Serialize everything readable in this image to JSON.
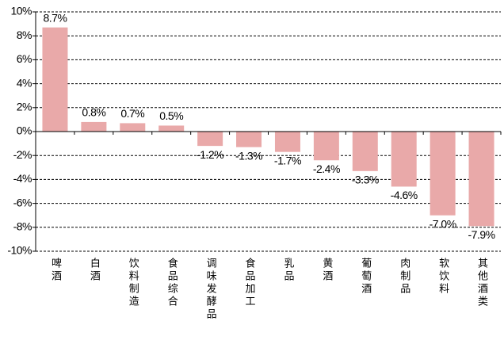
{
  "chart_data": {
    "type": "bar",
    "categories": [
      "啤酒",
      "白酒",
      "饮料制造",
      "食品综合",
      "调味发酵品",
      "食品加工",
      "乳品",
      "黄酒",
      "葡萄酒",
      "肉制品",
      "软饮料",
      "其他酒类"
    ],
    "values": [
      8.7,
      0.8,
      0.7,
      0.5,
      -1.2,
      -1.3,
      -1.7,
      -2.4,
      -3.3,
      -4.6,
      -7.0,
      -7.9
    ],
    "value_labels": [
      "8.7%",
      "0.8%",
      "0.7%",
      "0.5%",
      "-1.2%",
      "-1.3%",
      "-1.7%",
      "-2.4%",
      "-3.3%",
      "-4.6%",
      "-7.0%",
      "-7.9%"
    ],
    "color": "#e9a9a9",
    "ylim": [
      -10,
      10
    ],
    "yticks": [
      {
        "value": -10,
        "label": "-10%"
      },
      {
        "value": -8,
        "label": "-8%"
      },
      {
        "value": -6,
        "label": "-6%"
      },
      {
        "value": -4,
        "label": "-4%"
      },
      {
        "value": -2,
        "label": "-2%"
      },
      {
        "value": 0,
        "label": "0%"
      },
      {
        "value": 2,
        "label": "2%"
      },
      {
        "value": 4,
        "label": "4%"
      },
      {
        "value": 6,
        "label": "6%"
      },
      {
        "value": 8,
        "label": "8%"
      },
      {
        "value": 10,
        "label": "10%"
      }
    ],
    "grid": true
  }
}
